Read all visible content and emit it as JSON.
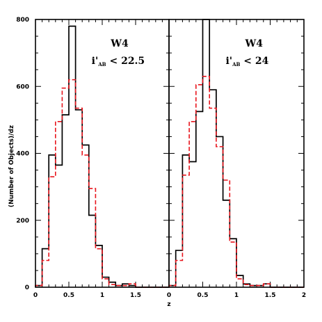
{
  "chart_data": {
    "type": "histogram",
    "ylabel": "(Number of Objects)/dz",
    "xlabel": "z",
    "xlim": [
      0,
      2
    ],
    "ylim": [
      0,
      800
    ],
    "y_ticks": [
      "0",
      "200",
      "400",
      "600",
      "800"
    ],
    "bin_edges": [
      0.0,
      0.1,
      0.2,
      0.3,
      0.4,
      0.5,
      0.6,
      0.7,
      0.8,
      0.9,
      1.0,
      1.1,
      1.2,
      1.3,
      1.4,
      1.5,
      1.6,
      1.7,
      1.8,
      1.9,
      2.0
    ],
    "panels": [
      {
        "annotation": {
          "field": "W4",
          "mag_prefix": "i'",
          "mag_sub": "AB",
          "mag_cut": "< 22.5"
        },
        "x_ticks": [
          "0",
          "0.5",
          "1",
          "1.5"
        ],
        "series": [
          {
            "style": "solid",
            "color": "#000000",
            "values": [
              5,
              115,
              395,
              365,
              515,
              780,
              530,
              425,
              215,
              125,
              30,
              15,
              5,
              10,
              5,
              0,
              0,
              0,
              0,
              0
            ]
          },
          {
            "style": "dashed",
            "color": "#e8141c",
            "values": [
              5,
              80,
              330,
              495,
              595,
              620,
              535,
              395,
              295,
              115,
              25,
              8,
              5,
              5,
              10,
              0,
              0,
              0,
              0,
              0
            ]
          }
        ]
      },
      {
        "annotation": {
          "field": "W4",
          "mag_prefix": "i'",
          "mag_sub": "AB",
          "mag_cut": "< 24"
        },
        "x_ticks": [
          "0",
          "0.5",
          "1",
          "1.5",
          "2"
        ],
        "series": [
          {
            "style": "solid",
            "color": "#000000",
            "values": [
              5,
              110,
              395,
              375,
              525,
              800,
              590,
              450,
              260,
              145,
              35,
              10,
              5,
              5,
              10,
              0,
              0,
              0,
              0,
              0
            ]
          },
          {
            "style": "dashed",
            "color": "#e8141c",
            "values": [
              5,
              80,
              335,
              495,
              605,
              630,
              535,
              420,
              320,
              135,
              25,
              8,
              5,
              5,
              10,
              0,
              0,
              0,
              0,
              0
            ]
          }
        ]
      }
    ]
  }
}
